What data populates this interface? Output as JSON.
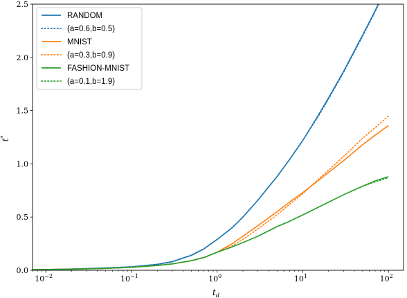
{
  "chart_data": {
    "type": "line",
    "xscale": "log",
    "xlim": [
      0.007,
      150
    ],
    "ylim": [
      0,
      2.5
    ],
    "xlabel": "t",
    "xlabel_sub": "d",
    "ylabel": "t",
    "ylabel_sup": "*",
    "x_ticks": [
      {
        "base": "10",
        "exp": "−2",
        "value": 0.01
      },
      {
        "base": "10",
        "exp": "−1",
        "value": 0.1
      },
      {
        "base": "10",
        "exp": "0",
        "value": 1
      },
      {
        "base": "10",
        "exp": "1",
        "value": 10
      },
      {
        "base": "10",
        "exp": "2",
        "value": 100
      }
    ],
    "y_ticks": [
      {
        "label": "0.0",
        "value": 0.0
      },
      {
        "label": "0.5",
        "value": 0.5
      },
      {
        "label": "1.0",
        "value": 1.0
      },
      {
        "label": "1.5",
        "value": 1.5
      },
      {
        "label": "2.0",
        "value": 2.0
      },
      {
        "label": "2.5",
        "value": 2.5
      }
    ],
    "legend_position": "top-left",
    "grid": false,
    "series": [
      {
        "name": "RANDOM",
        "color": "#1f77b4",
        "style": "solid",
        "x": [
          0.007,
          0.01,
          0.02,
          0.05,
          0.1,
          0.2,
          0.3,
          0.5,
          0.7,
          1,
          1.5,
          2,
          3,
          5,
          7,
          10,
          15,
          20,
          30,
          50,
          70,
          100
        ],
        "y": [
          0.005,
          0.007,
          0.012,
          0.022,
          0.032,
          0.055,
          0.08,
          0.14,
          0.2,
          0.29,
          0.4,
          0.5,
          0.66,
          0.88,
          1.04,
          1.22,
          1.45,
          1.62,
          1.87,
          2.21,
          2.44,
          2.7
        ]
      },
      {
        "name": "(a=0.6,b=0.5)",
        "color": "#1f77b4",
        "style": "dotted",
        "x": [
          0.007,
          0.01,
          0.02,
          0.05,
          0.1,
          0.2,
          0.3,
          0.5,
          0.7,
          1,
          1.5,
          2,
          3,
          5,
          7,
          10,
          15,
          20,
          30,
          50,
          70,
          100
        ],
        "y": [
          0.005,
          0.007,
          0.012,
          0.022,
          0.033,
          0.057,
          0.083,
          0.143,
          0.203,
          0.29,
          0.4,
          0.5,
          0.66,
          0.88,
          1.04,
          1.22,
          1.44,
          1.61,
          1.86,
          2.2,
          2.43,
          2.69
        ]
      },
      {
        "name": "MNIST",
        "color": "#ff7f0e",
        "style": "solid",
        "x": [
          0.007,
          0.01,
          0.02,
          0.05,
          0.1,
          0.2,
          0.3,
          0.5,
          0.7,
          1,
          1.5,
          2,
          3,
          5,
          7,
          10,
          15,
          20,
          30,
          50,
          70,
          100
        ],
        "y": [
          0.005,
          0.007,
          0.01,
          0.018,
          0.028,
          0.045,
          0.06,
          0.09,
          0.12,
          0.17,
          0.25,
          0.32,
          0.42,
          0.55,
          0.64,
          0.73,
          0.84,
          0.92,
          1.03,
          1.18,
          1.27,
          1.36
        ]
      },
      {
        "name": "(a=0.3,b=0.9)",
        "color": "#ff7f0e",
        "style": "dotted",
        "x": [
          0.007,
          0.01,
          0.02,
          0.05,
          0.1,
          0.2,
          0.3,
          0.5,
          0.7,
          1,
          1.5,
          2,
          3,
          5,
          7,
          10,
          15,
          20,
          30,
          50,
          70,
          100
        ],
        "y": [
          0.005,
          0.007,
          0.01,
          0.018,
          0.028,
          0.045,
          0.06,
          0.09,
          0.12,
          0.17,
          0.23,
          0.29,
          0.39,
          0.52,
          0.62,
          0.72,
          0.85,
          0.94,
          1.07,
          1.24,
          1.34,
          1.45
        ]
      },
      {
        "name": "FASHION-MNIST",
        "color": "#2ca02c",
        "style": "solid",
        "x": [
          0.007,
          0.01,
          0.02,
          0.05,
          0.1,
          0.2,
          0.3,
          0.5,
          0.7,
          1,
          1.5,
          2,
          3,
          5,
          7,
          10,
          15,
          20,
          30,
          50,
          70,
          100
        ],
        "y": [
          0.005,
          0.007,
          0.01,
          0.018,
          0.028,
          0.045,
          0.06,
          0.09,
          0.12,
          0.17,
          0.22,
          0.26,
          0.32,
          0.41,
          0.46,
          0.52,
          0.59,
          0.64,
          0.71,
          0.79,
          0.84,
          0.88
        ]
      },
      {
        "name": "(a=0.1,b=1.9)",
        "color": "#2ca02c",
        "style": "dotted",
        "x": [
          0.007,
          0.01,
          0.02,
          0.05,
          0.1,
          0.2,
          0.3,
          0.5,
          0.7,
          1,
          1.5,
          2,
          3,
          5,
          7,
          10,
          15,
          20,
          30,
          50,
          70,
          100
        ],
        "y": [
          0.005,
          0.007,
          0.01,
          0.018,
          0.028,
          0.045,
          0.06,
          0.09,
          0.12,
          0.17,
          0.22,
          0.26,
          0.32,
          0.41,
          0.46,
          0.52,
          0.59,
          0.64,
          0.71,
          0.79,
          0.83,
          0.87
        ]
      }
    ]
  }
}
